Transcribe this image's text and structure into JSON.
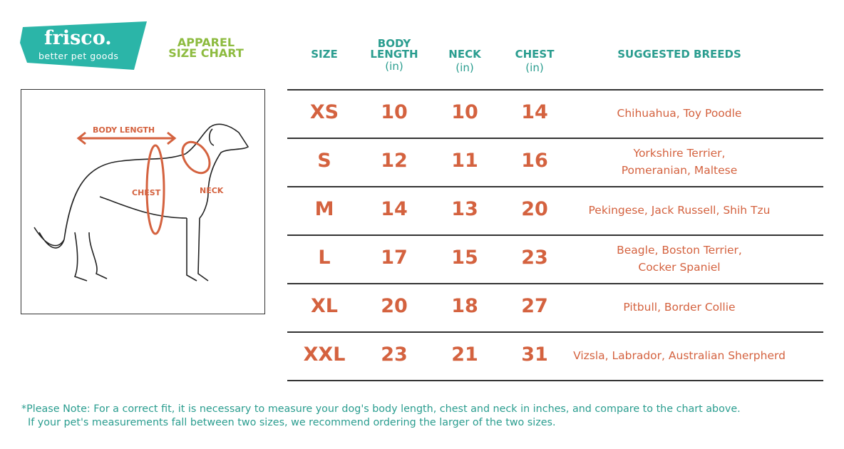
{
  "logo": {
    "brand": "frisco.",
    "tagline": "better pet goods"
  },
  "title": {
    "line1": "APPAREL",
    "line2": "SIZE CHART"
  },
  "diagram": {
    "body_length": "BODY LENGTH",
    "chest": "CHEST",
    "neck": "NECK"
  },
  "headers": {
    "size": "SIZE",
    "body_length": "BODY LENGTH",
    "neck": "NECK",
    "chest": "CHEST",
    "unit": "(in)",
    "breeds": "SUGGESTED BREEDS"
  },
  "rows": [
    {
      "size": "XS",
      "body": "10",
      "neck": "10",
      "chest": "14",
      "breeds": [
        "Chihuahua, Toy Poodle"
      ]
    },
    {
      "size": "S",
      "body": "12",
      "neck": "11",
      "chest": "16",
      "breeds": [
        "Yorkshire Terrier,",
        "Pomeranian, Maltese"
      ]
    },
    {
      "size": "M",
      "body": "14",
      "neck": "13",
      "chest": "20",
      "breeds": [
        "Pekingese, Jack Russell, Shih Tzu"
      ]
    },
    {
      "size": "L",
      "body": "17",
      "neck": "15",
      "chest": "23",
      "breeds": [
        "Beagle, Boston Terrier,",
        "Cocker Spaniel"
      ]
    },
    {
      "size": "XL",
      "body": "20",
      "neck": "18",
      "chest": "27",
      "breeds": [
        "Pitbull, Border Collie"
      ]
    },
    {
      "size": "XXL",
      "body": "23",
      "neck": "21",
      "chest": "31",
      "breeds": [
        "Vizsla, Labrador, Australian Sherpherd"
      ]
    }
  ],
  "note": {
    "line1": "*Please Note: For a correct fit, it is necessary to measure your dog's body length, chest and neck in inches, and compare to the chart above.",
    "line2": "If your pet's measurements fall between two sizes, we recommend ordering the larger of the two sizes."
  },
  "colors": {
    "teal": "#2bb5a8",
    "header": "#2a9d8f",
    "accent": "#d4623f",
    "green": "#8dbb3f"
  }
}
